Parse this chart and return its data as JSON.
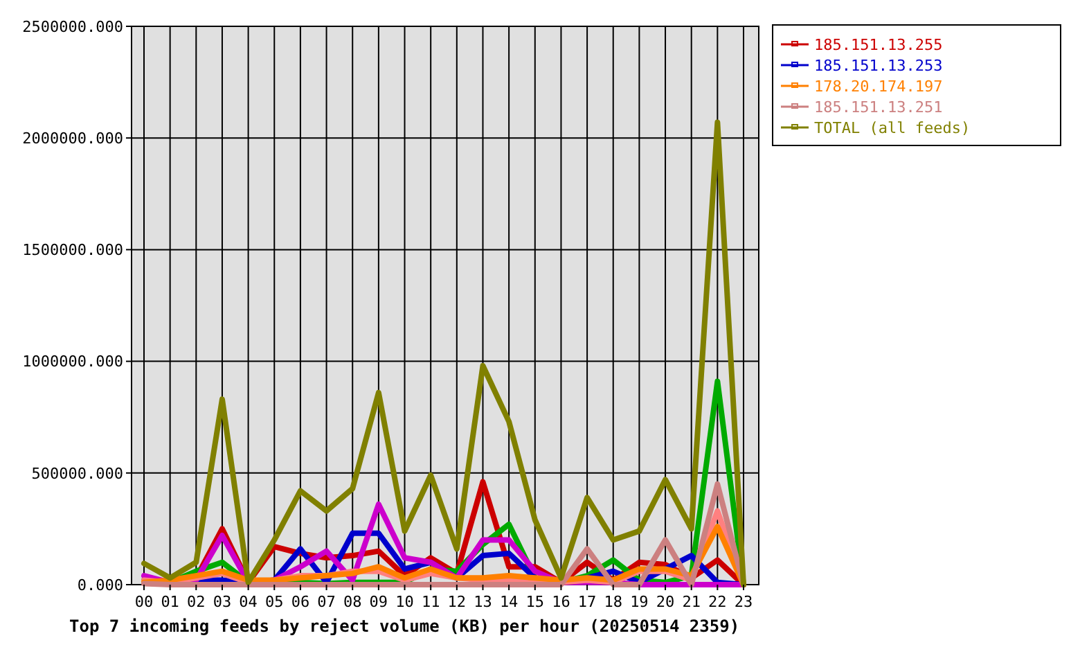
{
  "chart_data": {
    "type": "line",
    "title": "Top 7 incoming feeds by reject volume (KB) per hour (20250514 2359)",
    "categories": [
      "00",
      "01",
      "02",
      "03",
      "04",
      "05",
      "06",
      "07",
      "08",
      "09",
      "10",
      "11",
      "12",
      "13",
      "14",
      "15",
      "16",
      "17",
      "18",
      "19",
      "20",
      "21",
      "22",
      "23"
    ],
    "series": [
      {
        "name": "185.151.13.255",
        "color": "#cc0000",
        "values": [
          10000,
          10000,
          30000,
          250000,
          10000,
          170000,
          140000,
          120000,
          130000,
          150000,
          40000,
          120000,
          50000,
          460000,
          80000,
          80000,
          10000,
          100000,
          20000,
          100000,
          90000,
          30000,
          110000,
          0
        ]
      },
      {
        "color": "#00aa00",
        "values": [
          20000,
          10000,
          60000,
          100000,
          10000,
          10000,
          10000,
          5000,
          10000,
          10000,
          10000,
          70000,
          60000,
          180000,
          270000,
          30000,
          10000,
          40000,
          110000,
          20000,
          10000,
          40000,
          910000,
          0
        ]
      },
      {
        "name": "185.151.13.253",
        "color": "#0000cc",
        "values": [
          null,
          10000,
          20000,
          20000,
          10000,
          20000,
          160000,
          10000,
          230000,
          230000,
          70000,
          100000,
          30000,
          130000,
          140000,
          30000,
          10000,
          30000,
          60000,
          10000,
          70000,
          130000,
          10000,
          0
        ]
      },
      {
        "color": "#cc00cc",
        "values": [
          40000,
          10000,
          20000,
          220000,
          10000,
          20000,
          80000,
          150000,
          20000,
          360000,
          120000,
          100000,
          30000,
          200000,
          200000,
          60000,
          10000,
          10000,
          10000,
          0,
          0,
          0,
          0,
          0
        ]
      },
      {
        "color": "#ff8080",
        "values": [
          20000,
          10000,
          30000,
          50000,
          10000,
          20000,
          40000,
          40000,
          60000,
          60000,
          20000,
          50000,
          30000,
          20000,
          20000,
          10000,
          10000,
          20000,
          10000,
          60000,
          60000,
          20000,
          330000,
          0
        ]
      },
      {
        "name": "178.20.174.197",
        "color": "#ff8000",
        "values": [
          10000,
          20000,
          40000,
          60000,
          20000,
          20000,
          30000,
          40000,
          50000,
          80000,
          30000,
          70000,
          30000,
          30000,
          40000,
          30000,
          20000,
          30000,
          20000,
          70000,
          70000,
          40000,
          260000,
          0
        ]
      },
      {
        "name": "185.151.13.251",
        "color": "#cc8080",
        "values": [
          5000,
          0,
          0,
          0,
          0,
          0,
          0,
          0,
          0,
          0,
          0,
          0,
          0,
          0,
          0,
          0,
          0,
          160000,
          0,
          0,
          200000,
          0,
          450000,
          0
        ]
      },
      {
        "name": "TOTAL (all feeds)",
        "color": "#808000",
        "values": [
          95000,
          30000,
          100000,
          830000,
          10000,
          200000,
          420000,
          330000,
          430000,
          860000,
          240000,
          490000,
          160000,
          980000,
          730000,
          290000,
          30000,
          390000,
          200000,
          240000,
          470000,
          250000,
          2070000,
          0
        ]
      }
    ],
    "ylim": [
      0,
      2500000
    ],
    "yticks": [
      {
        "value": 0,
        "label": "0.000"
      },
      {
        "value": 500000,
        "label": "500000.000"
      },
      {
        "value": 1000000,
        "label": "1000000.000"
      },
      {
        "value": 1500000,
        "label": "1500000.000"
      },
      {
        "value": 2000000,
        "label": "2000000.000"
      },
      {
        "value": 2500000,
        "label": "2500000.000"
      }
    ],
    "grid": true,
    "legend": "right",
    "marker": "none",
    "line_style": "solid"
  }
}
